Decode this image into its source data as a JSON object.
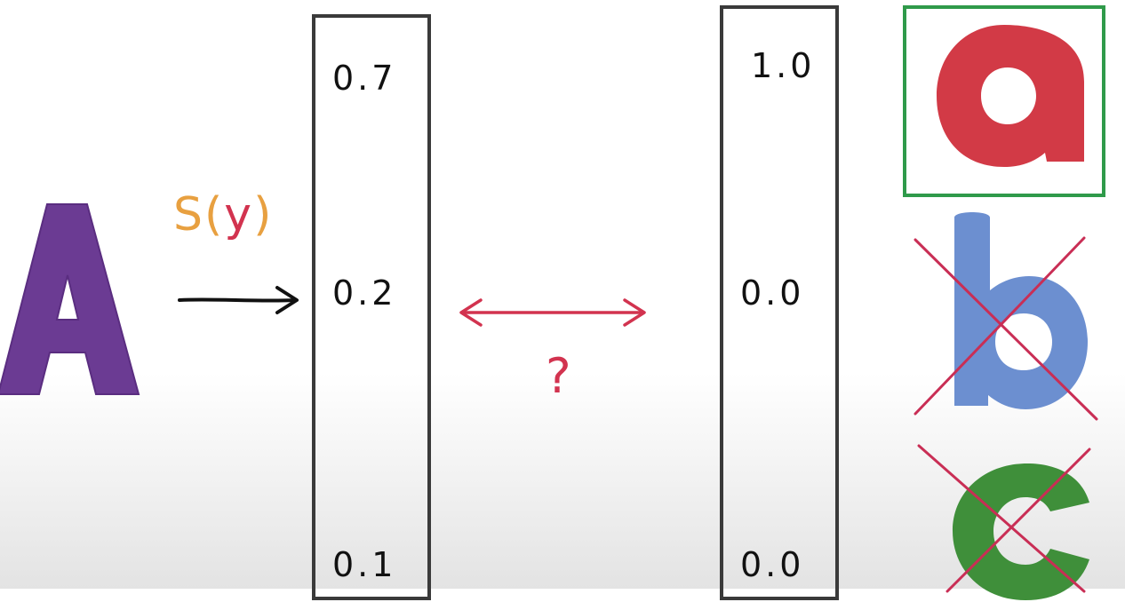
{
  "input_letter": "A",
  "function_label": "S(y)",
  "question_mark": "?",
  "softmax_vector": [
    "0.7",
    "0.2",
    "0.1"
  ],
  "onehot_vector": [
    "1.0",
    "0.0",
    "0.0"
  ],
  "classes": [
    "a",
    "b",
    "c"
  ],
  "colors": {
    "input_letter": "#6b3b93",
    "label_orange": "#e8a040",
    "label_red": "#d2334f",
    "class_a": "#d23a46",
    "class_b": "#6c8fd0",
    "class_c": "#3f8f3a",
    "correct_box": "#2f9a4a",
    "cross": "#c92e55"
  }
}
